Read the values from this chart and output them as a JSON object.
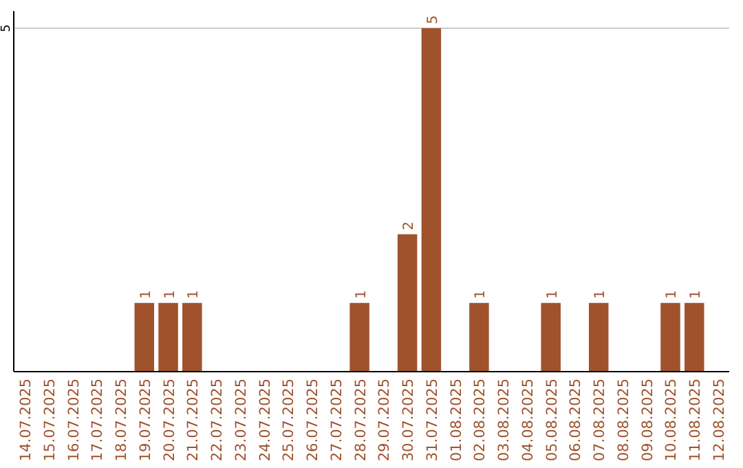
{
  "chart_data": {
    "type": "bar",
    "categories": [
      "14.07.2025",
      "15.07.2025",
      "16.07.2025",
      "17.07.2025",
      "18.07.2025",
      "19.07.2025",
      "20.07.2025",
      "21.07.2025",
      "22.07.2025",
      "23.07.2025",
      "24.07.2025",
      "25.07.2025",
      "26.07.2025",
      "27.07.2025",
      "28.07.2025",
      "29.07.2025",
      "30.07.2025",
      "31.07.2025",
      "01.08.2025",
      "02.08.2025",
      "03.08.2025",
      "04.08.2025",
      "05.08.2025",
      "06.08.2025",
      "07.08.2025",
      "08.08.2025",
      "09.08.2025",
      "10.08.2025",
      "11.08.2025",
      "12.08.2025"
    ],
    "values": [
      0,
      0,
      0,
      0,
      0,
      1,
      1,
      1,
      0,
      0,
      0,
      0,
      0,
      0,
      1,
      0,
      2,
      5,
      0,
      1,
      0,
      0,
      1,
      0,
      1,
      0,
      0,
      1,
      1,
      0
    ],
    "value_labels": [
      null,
      null,
      null,
      null,
      null,
      "1",
      "1",
      "1",
      null,
      null,
      null,
      null,
      null,
      null,
      "1",
      null,
      "2",
      "5",
      null,
      "1",
      null,
      null,
      "1",
      null,
      "1",
      null,
      null,
      "1",
      "1",
      null
    ],
    "color": "#a0522d",
    "ylim": [
      0,
      5.25
    ],
    "yticks": [
      5
    ],
    "grid": "y"
  }
}
